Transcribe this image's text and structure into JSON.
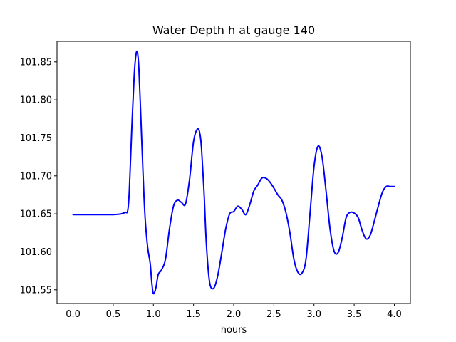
{
  "chart_data": {
    "type": "line",
    "title": "Water Depth h at gauge 140",
    "xlabel": "hours",
    "ylabel": "",
    "xlim": [
      -0.2,
      4.2
    ],
    "ylim": [
      101.532,
      101.877
    ],
    "grid": false,
    "x_ticks": [
      0.0,
      0.5,
      1.0,
      1.5,
      2.0,
      2.5,
      3.0,
      3.5,
      4.0
    ],
    "x_tick_labels": [
      "0.0",
      "0.5",
      "1.0",
      "1.5",
      "2.0",
      "2.5",
      "3.0",
      "3.5",
      "4.0"
    ],
    "y_ticks": [
      101.55,
      101.6,
      101.65,
      101.7,
      101.75,
      101.8,
      101.85
    ],
    "y_tick_labels": [
      "101.55",
      "101.60",
      "101.65",
      "101.70",
      "101.75",
      "101.80",
      "101.85"
    ],
    "series": [
      {
        "color": "#0000ff",
        "x": [
          0.0,
          0.1,
          0.2,
          0.3,
          0.4,
          0.5,
          0.6,
          0.65,
          0.68,
          0.7,
          0.73,
          0.76,
          0.78,
          0.8,
          0.82,
          0.85,
          0.88,
          0.9,
          0.93,
          0.96,
          0.98,
          1.0,
          1.03,
          1.06,
          1.1,
          1.15,
          1.2,
          1.25,
          1.3,
          1.35,
          1.4,
          1.45,
          1.5,
          1.55,
          1.58,
          1.6,
          1.63,
          1.66,
          1.7,
          1.75,
          1.8,
          1.85,
          1.9,
          1.95,
          2.0,
          2.05,
          2.1,
          2.15,
          2.2,
          2.25,
          2.3,
          2.35,
          2.4,
          2.45,
          2.5,
          2.55,
          2.6,
          2.65,
          2.7,
          2.75,
          2.8,
          2.85,
          2.9,
          2.95,
          3.0,
          3.05,
          3.1,
          3.15,
          3.2,
          3.25,
          3.3,
          3.35,
          3.4,
          3.45,
          3.5,
          3.55,
          3.6,
          3.65,
          3.7,
          3.75,
          3.8,
          3.85,
          3.9,
          3.95,
          4.0
        ],
        "y": [
          101.649,
          101.649,
          101.649,
          101.649,
          101.649,
          101.649,
          101.65,
          101.652,
          101.654,
          101.68,
          101.76,
          101.83,
          101.857,
          101.863,
          101.84,
          101.76,
          101.68,
          101.64,
          101.605,
          101.585,
          101.56,
          101.545,
          101.552,
          101.57,
          101.576,
          101.59,
          101.63,
          101.66,
          101.668,
          101.665,
          101.663,
          101.695,
          101.745,
          101.762,
          101.755,
          101.735,
          101.68,
          101.61,
          101.56,
          101.552,
          101.568,
          101.598,
          101.63,
          101.65,
          101.653,
          101.66,
          101.656,
          101.649,
          101.662,
          101.68,
          101.688,
          101.697,
          101.697,
          101.692,
          101.684,
          101.675,
          101.668,
          101.652,
          101.625,
          101.59,
          101.573,
          101.572,
          101.59,
          101.65,
          101.712,
          101.739,
          101.725,
          101.68,
          101.63,
          101.601,
          101.599,
          101.618,
          101.645,
          101.652,
          101.651,
          101.645,
          101.628,
          101.617,
          101.622,
          101.64,
          101.66,
          101.678,
          101.686,
          101.686,
          101.686
        ]
      }
    ]
  }
}
